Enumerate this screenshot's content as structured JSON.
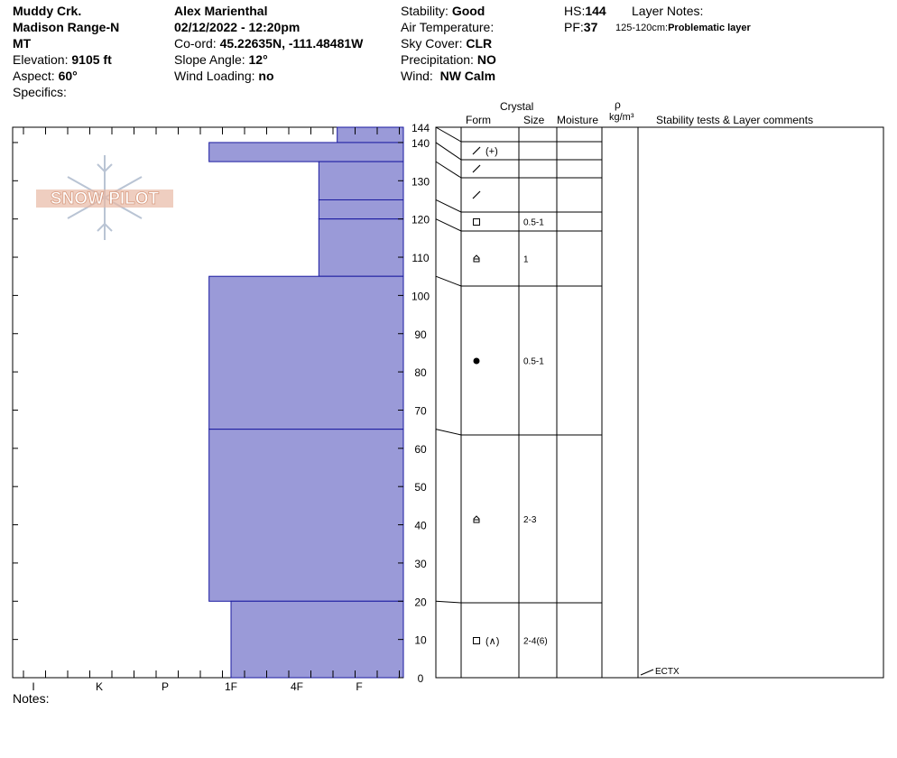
{
  "header": {
    "location1": "Muddy Crk.",
    "location2": "Madison Range-N",
    "state": "MT",
    "elevation_label": "Elevation:",
    "elevation_value": "9105 ft",
    "aspect_label": "Aspect:",
    "aspect_value": "60°",
    "specifics_label": "Specifics:",
    "observer": "Alex Marienthal",
    "datetime": "02/12/2022 - 12:20pm",
    "coord_label": "Co-ord:",
    "coord_value": "45.22635N, -111.48481W",
    "slope_label": "Slope Angle:",
    "slope_value": "12°",
    "wind_loading_label": "Wind Loading:",
    "wind_loading_value": "no",
    "stability_label": "Stability:",
    "stability_value": "Good",
    "air_temp_label": "Air Temperature:",
    "sky_label": "Sky Cover:",
    "sky_value": "CLR",
    "precip_label": "Precipitation:",
    "precip_value": "NO",
    "wind_label": "Wind:",
    "wind_value": "NW Calm",
    "hs_label": "HS:",
    "hs_value": "144",
    "pf_label": "PF:",
    "pf_value": "37",
    "layer_notes_label": "Layer Notes:",
    "layer_note_range": "125-120cm:",
    "layer_note_text": "Problematic layer"
  },
  "logo_text": "SNOW PILOT",
  "notes_label": "Notes:",
  "columns": {
    "crystal": "Crystal",
    "form": "Form",
    "size": "Size",
    "moisture": "Moisture",
    "rho": "ρ",
    "density_unit": "kg/m³",
    "comments": "Stability tests & Layer comments"
  },
  "chart_data": {
    "type": "bar",
    "orientation": "horizontal",
    "y_label": "",
    "y_range": [
      0,
      144
    ],
    "y_ticks": [
      "0",
      "10",
      "20",
      "30",
      "40",
      "50",
      "60",
      "70",
      "80",
      "90",
      "100",
      "110",
      "120",
      "130",
      "140",
      "144"
    ],
    "hardness_ticks": [
      "I",
      "K",
      "P",
      "1F",
      "4F",
      "F"
    ],
    "bar_color": "#9a9ad8",
    "layers": [
      {
        "top": 144,
        "bottom": 140,
        "hardness": "F+",
        "form": "",
        "size": ""
      },
      {
        "top": 140,
        "bottom": 135,
        "hardness": "1F+",
        "form": "precipitation-particles (rounded)",
        "size": ""
      },
      {
        "top": 135,
        "bottom": 125,
        "hardness": "4F-",
        "form": "precipitation-particles",
        "size": ""
      },
      {
        "top": 125,
        "bottom": 120,
        "hardness": "4F-",
        "form": "faceted",
        "size": "0.5-1"
      },
      {
        "top": 120,
        "bottom": 105,
        "hardness": "4F-",
        "form": "depth-hoar",
        "size": "1"
      },
      {
        "top": 105,
        "bottom": 65,
        "hardness": "1F+",
        "form": "rounded",
        "size": "0.5-1"
      },
      {
        "top": 65,
        "bottom": 20,
        "hardness": "1F+",
        "form": "depth-hoar",
        "size": "2-3"
      },
      {
        "top": 20,
        "bottom": 0,
        "hardness": "1F",
        "form": "faceted (depth hoar)",
        "size": "2-4(6)"
      }
    ],
    "stability_tests": [
      {
        "height": 0,
        "label": "ECTX"
      }
    ]
  }
}
